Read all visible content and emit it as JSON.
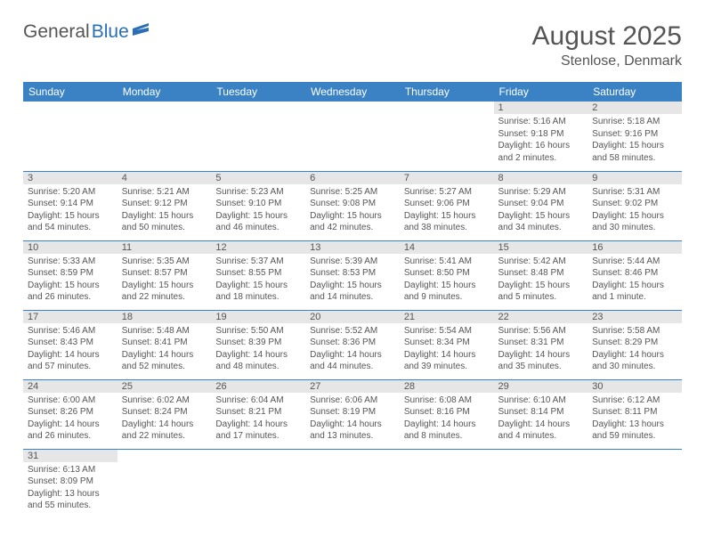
{
  "logo": {
    "general": "General",
    "blue": "Blue"
  },
  "title": "August 2025",
  "location": "Stenlose, Denmark",
  "header_bg": "#3a82c4",
  "daynum_bg": "#e6e6e6",
  "border_color": "#3a82c4",
  "days_of_week": [
    "Sunday",
    "Monday",
    "Tuesday",
    "Wednesday",
    "Thursday",
    "Friday",
    "Saturday"
  ],
  "weeks": [
    [
      null,
      null,
      null,
      null,
      null,
      {
        "n": "1",
        "sr": "5:16 AM",
        "ss": "9:18 PM",
        "dl": "16 hours and 2 minutes."
      },
      {
        "n": "2",
        "sr": "5:18 AM",
        "ss": "9:16 PM",
        "dl": "15 hours and 58 minutes."
      }
    ],
    [
      {
        "n": "3",
        "sr": "5:20 AM",
        "ss": "9:14 PM",
        "dl": "15 hours and 54 minutes."
      },
      {
        "n": "4",
        "sr": "5:21 AM",
        "ss": "9:12 PM",
        "dl": "15 hours and 50 minutes."
      },
      {
        "n": "5",
        "sr": "5:23 AM",
        "ss": "9:10 PM",
        "dl": "15 hours and 46 minutes."
      },
      {
        "n": "6",
        "sr": "5:25 AM",
        "ss": "9:08 PM",
        "dl": "15 hours and 42 minutes."
      },
      {
        "n": "7",
        "sr": "5:27 AM",
        "ss": "9:06 PM",
        "dl": "15 hours and 38 minutes."
      },
      {
        "n": "8",
        "sr": "5:29 AM",
        "ss": "9:04 PM",
        "dl": "15 hours and 34 minutes."
      },
      {
        "n": "9",
        "sr": "5:31 AM",
        "ss": "9:02 PM",
        "dl": "15 hours and 30 minutes."
      }
    ],
    [
      {
        "n": "10",
        "sr": "5:33 AM",
        "ss": "8:59 PM",
        "dl": "15 hours and 26 minutes."
      },
      {
        "n": "11",
        "sr": "5:35 AM",
        "ss": "8:57 PM",
        "dl": "15 hours and 22 minutes."
      },
      {
        "n": "12",
        "sr": "5:37 AM",
        "ss": "8:55 PM",
        "dl": "15 hours and 18 minutes."
      },
      {
        "n": "13",
        "sr": "5:39 AM",
        "ss": "8:53 PM",
        "dl": "15 hours and 14 minutes."
      },
      {
        "n": "14",
        "sr": "5:41 AM",
        "ss": "8:50 PM",
        "dl": "15 hours and 9 minutes."
      },
      {
        "n": "15",
        "sr": "5:42 AM",
        "ss": "8:48 PM",
        "dl": "15 hours and 5 minutes."
      },
      {
        "n": "16",
        "sr": "5:44 AM",
        "ss": "8:46 PM",
        "dl": "15 hours and 1 minute."
      }
    ],
    [
      {
        "n": "17",
        "sr": "5:46 AM",
        "ss": "8:43 PM",
        "dl": "14 hours and 57 minutes."
      },
      {
        "n": "18",
        "sr": "5:48 AM",
        "ss": "8:41 PM",
        "dl": "14 hours and 52 minutes."
      },
      {
        "n": "19",
        "sr": "5:50 AM",
        "ss": "8:39 PM",
        "dl": "14 hours and 48 minutes."
      },
      {
        "n": "20",
        "sr": "5:52 AM",
        "ss": "8:36 PM",
        "dl": "14 hours and 44 minutes."
      },
      {
        "n": "21",
        "sr": "5:54 AM",
        "ss": "8:34 PM",
        "dl": "14 hours and 39 minutes."
      },
      {
        "n": "22",
        "sr": "5:56 AM",
        "ss": "8:31 PM",
        "dl": "14 hours and 35 minutes."
      },
      {
        "n": "23",
        "sr": "5:58 AM",
        "ss": "8:29 PM",
        "dl": "14 hours and 30 minutes."
      }
    ],
    [
      {
        "n": "24",
        "sr": "6:00 AM",
        "ss": "8:26 PM",
        "dl": "14 hours and 26 minutes."
      },
      {
        "n": "25",
        "sr": "6:02 AM",
        "ss": "8:24 PM",
        "dl": "14 hours and 22 minutes."
      },
      {
        "n": "26",
        "sr": "6:04 AM",
        "ss": "8:21 PM",
        "dl": "14 hours and 17 minutes."
      },
      {
        "n": "27",
        "sr": "6:06 AM",
        "ss": "8:19 PM",
        "dl": "14 hours and 13 minutes."
      },
      {
        "n": "28",
        "sr": "6:08 AM",
        "ss": "8:16 PM",
        "dl": "14 hours and 8 minutes."
      },
      {
        "n": "29",
        "sr": "6:10 AM",
        "ss": "8:14 PM",
        "dl": "14 hours and 4 minutes."
      },
      {
        "n": "30",
        "sr": "6:12 AM",
        "ss": "8:11 PM",
        "dl": "13 hours and 59 minutes."
      }
    ],
    [
      {
        "n": "31",
        "sr": "6:13 AM",
        "ss": "8:09 PM",
        "dl": "13 hours and 55 minutes."
      },
      null,
      null,
      null,
      null,
      null,
      null
    ]
  ],
  "labels": {
    "sunrise": "Sunrise: ",
    "sunset": "Sunset: ",
    "daylight": "Daylight: "
  }
}
